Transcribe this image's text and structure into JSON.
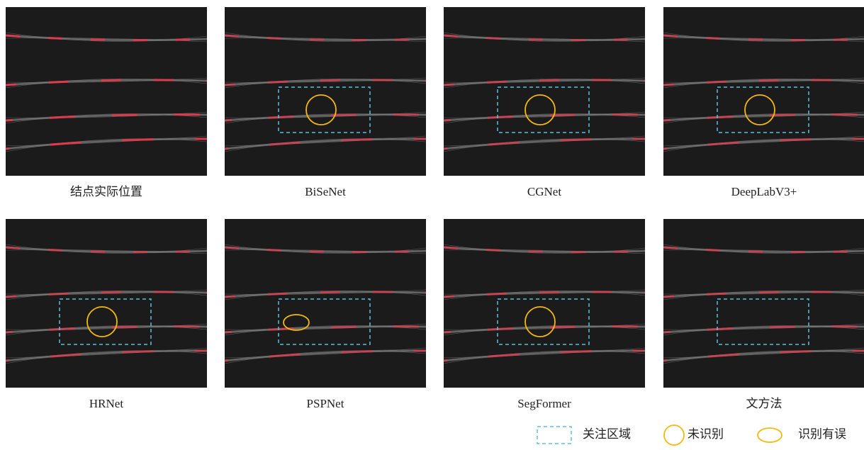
{
  "panels": [
    {
      "caption": "结点实际位置"
    },
    {
      "caption": "BiSeNet"
    },
    {
      "caption": "CGNet"
    },
    {
      "caption": "DeepLabV3+"
    },
    {
      "caption": "HRNet"
    },
    {
      "caption": "PSPNet"
    },
    {
      "caption": "SegFormer"
    },
    {
      "caption": "文方法"
    }
  ],
  "legend": {
    "items": [
      {
        "label": "关注区域"
      },
      {
        "label": "未识别"
      },
      {
        "label": "识别有误"
      }
    ]
  }
}
